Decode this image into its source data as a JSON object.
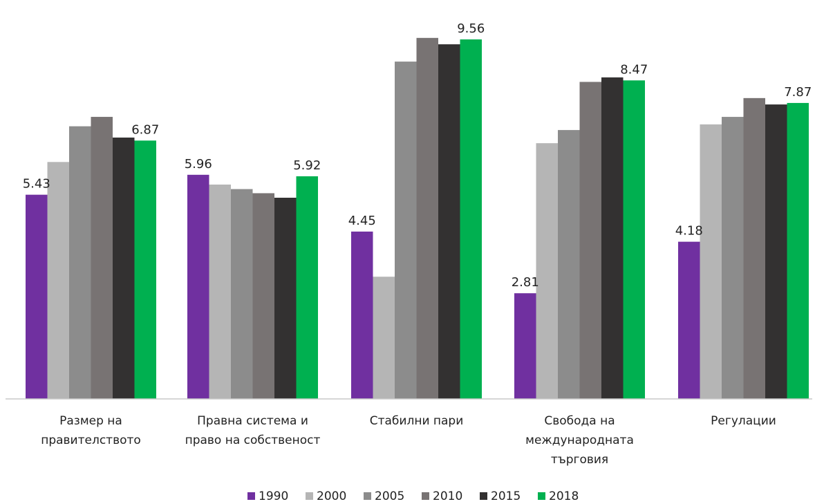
{
  "chart_data": {
    "type": "bar",
    "title": "",
    "xlabel": "",
    "ylabel": "",
    "ylim": [
      0,
      10
    ],
    "grid": false,
    "legend_position": "bottom",
    "categories": [
      [
        "Размер на",
        "правителството"
      ],
      [
        "Правна система и",
        "право на собственост"
      ],
      [
        "Стабилни пари"
      ],
      [
        "Свобода на",
        "международната",
        "търговия"
      ],
      [
        "Регулации"
      ]
    ],
    "series": [
      {
        "name": "1990",
        "color": "#7030a0",
        "values": [
          5.43,
          5.96,
          4.45,
          2.81,
          4.18
        ]
      },
      {
        "name": "2000",
        "color": "#b5b5b5",
        "values": [
          6.3,
          5.7,
          3.25,
          6.8,
          7.3
        ]
      },
      {
        "name": "2005",
        "color": "#8c8c8c",
        "values": [
          7.25,
          5.58,
          8.97,
          7.15,
          7.5
        ]
      },
      {
        "name": "2010",
        "color": "#787373",
        "values": [
          7.5,
          5.47,
          9.6,
          8.43,
          8.0
        ]
      },
      {
        "name": "2015",
        "color": "#333131",
        "values": [
          6.95,
          5.35,
          9.43,
          8.55,
          7.83
        ]
      },
      {
        "name": "2018",
        "color": "#00b050",
        "values": [
          6.87,
          5.92,
          9.56,
          8.47,
          7.87
        ]
      }
    ],
    "data_labels": [
      {
        "series": "1990",
        "category_index": 0,
        "text": "5.43"
      },
      {
        "series": "2018",
        "category_index": 0,
        "text": "6.87"
      },
      {
        "series": "1990",
        "category_index": 1,
        "text": "5.96"
      },
      {
        "series": "2018",
        "category_index": 1,
        "text": "5.92"
      },
      {
        "series": "1990",
        "category_index": 2,
        "text": "4.45"
      },
      {
        "series": "2018",
        "category_index": 2,
        "text": "9.56"
      },
      {
        "series": "1990",
        "category_index": 3,
        "text": "2.81"
      },
      {
        "series": "2018",
        "category_index": 3,
        "text": "8.47"
      },
      {
        "series": "1990",
        "category_index": 4,
        "text": "4.18"
      },
      {
        "series": "2018",
        "category_index": 4,
        "text": "7.87"
      }
    ]
  }
}
